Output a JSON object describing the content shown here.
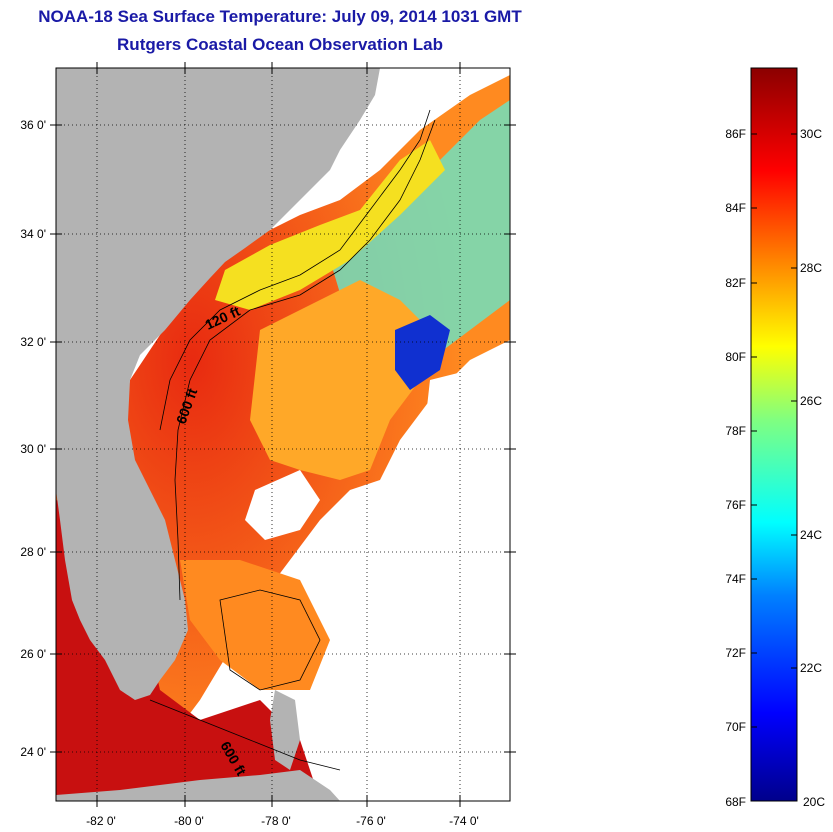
{
  "header": {
    "title": "NOAA-18 Sea Surface Temperature:  July 09, 2014 1031 GMT",
    "subtitle": "Rutgers Coastal Ocean Observation Lab"
  },
  "map": {
    "lat_labels": [
      "36 0'",
      "34 0'",
      "32 0'",
      "30 0'",
      "28 0'",
      "26 0'",
      "24 0'"
    ],
    "lon_labels": [
      "-82 0'",
      "-80 0'",
      "-78 0'",
      "-76 0'",
      "-74 0'"
    ],
    "contour_labels": [
      {
        "text": "120 ft"
      },
      {
        "text": "600 ft"
      },
      {
        "text": "600 ft"
      }
    ],
    "land_color": "#b3b3b3",
    "no_data_color": "#ffffff"
  },
  "colorbar": {
    "fahrenheit_labels": [
      "86F",
      "84F",
      "82F",
      "80F",
      "78F",
      "76F",
      "74F",
      "72F",
      "70F",
      "68F"
    ],
    "celsius_labels": [
      "30C",
      "28C",
      "26C",
      "24C",
      "22C",
      "20C"
    ],
    "range_f": [
      68,
      88
    ],
    "stops": [
      "#00008b",
      "#0000ff",
      "#0080ff",
      "#00ffff",
      "#80ff80",
      "#ffff00",
      "#ff8000",
      "#ff0000",
      "#8b0000"
    ]
  }
}
